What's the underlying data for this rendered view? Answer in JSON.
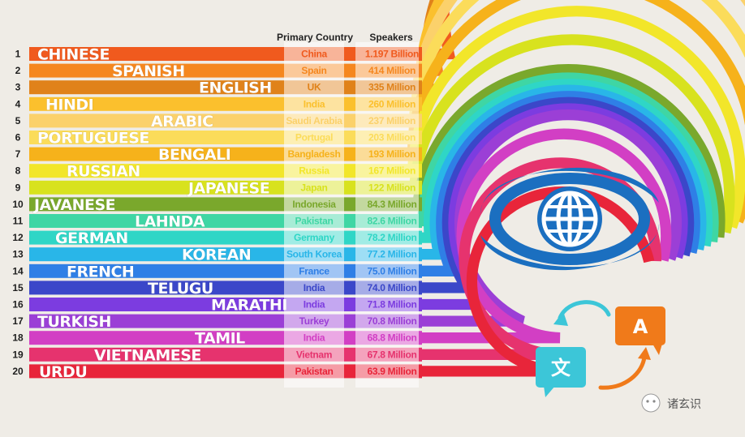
{
  "chart_data": {
    "type": "table",
    "columns": [
      "Primary Country",
      "Speakers"
    ],
    "rows": [
      {
        "rank": "1",
        "language": "CHINESE",
        "country": "China",
        "speakers_label": "1.197 Billion",
        "speakers_millions": 1197,
        "color": "#f05a1e"
      },
      {
        "rank": "2",
        "language": "SPANISH",
        "country": "Spain",
        "speakers_label": "414 Million",
        "speakers_millions": 414,
        "color": "#f5871f"
      },
      {
        "rank": "3",
        "language": "ENGLISH",
        "country": "UK",
        "speakers_label": "335 Million",
        "speakers_millions": 335,
        "color": "#e0821a"
      },
      {
        "rank": "4",
        "language": "HINDI",
        "country": "India",
        "speakers_label": "260 Million",
        "speakers_millions": 260,
        "color": "#fbc02d"
      },
      {
        "rank": "5",
        "language": "ARABIC",
        "country": "Saudi Arabia",
        "speakers_label": "237 Million",
        "speakers_millions": 237,
        "color": "#fbd16b"
      },
      {
        "rank": "6",
        "language": "PORTUGUESE",
        "country": "Portugal",
        "speakers_label": "203 Million",
        "speakers_millions": 203,
        "color": "#fbdc5a"
      },
      {
        "rank": "7",
        "language": "BENGALI",
        "country": "Bangladesh",
        "speakers_label": "193 Million",
        "speakers_millions": 193,
        "color": "#f6b21b"
      },
      {
        "rank": "8",
        "language": "RUSSIAN",
        "country": "Russia",
        "speakers_label": "167 Million",
        "speakers_millions": 167,
        "color": "#f2e62a"
      },
      {
        "rank": "9",
        "language": "JAPANESE",
        "country": "Japan",
        "speakers_label": "122 Million",
        "speakers_millions": 122,
        "color": "#d8e21e"
      },
      {
        "rank": "10",
        "language": "JAVANESE",
        "country": "Indonesia",
        "speakers_label": "84.3 Million",
        "speakers_millions": 84.3,
        "color": "#7aa82c"
      },
      {
        "rank": "11",
        "language": "LAHNDA",
        "country": "Pakistan",
        "speakers_label": "82.6 Million",
        "speakers_millions": 82.6,
        "color": "#3fd6a4"
      },
      {
        "rank": "12",
        "language": "GERMAN",
        "country": "Germany",
        "speakers_label": "78.2 Million",
        "speakers_millions": 78.2,
        "color": "#2fd6c6"
      },
      {
        "rank": "13",
        "language": "KOREAN",
        "country": "South Korea",
        "speakers_label": "77.2 Million",
        "speakers_millions": 77.2,
        "color": "#29b6e8"
      },
      {
        "rank": "14",
        "language": "FRENCH",
        "country": "France",
        "speakers_label": "75.0 Million",
        "speakers_millions": 75.0,
        "color": "#2f7fe6"
      },
      {
        "rank": "15",
        "language": "TELUGU",
        "country": "India",
        "speakers_label": "74.0 Million",
        "speakers_millions": 74.0,
        "color": "#3b47c9"
      },
      {
        "rank": "16",
        "language": "MARATHI",
        "country": "India",
        "speakers_label": "71.8 Million",
        "speakers_millions": 71.8,
        "color": "#7c3ce0"
      },
      {
        "rank": "17",
        "language": "TURKISH",
        "country": "Turkey",
        "speakers_label": "70.8 Million",
        "speakers_millions": 70.8,
        "color": "#9b3fd6"
      },
      {
        "rank": "18",
        "language": "TAMIL",
        "country": "India",
        "speakers_label": "68.8 Million",
        "speakers_millions": 68.8,
        "color": "#d23fc4"
      },
      {
        "rank": "19",
        "language": "VIETNAMESE",
        "country": "Vietnam",
        "speakers_label": "67.8 Million",
        "speakers_millions": 67.8,
        "color": "#e6336e"
      },
      {
        "rank": "20",
        "language": "URDU",
        "country": "Pakistan",
        "speakers_label": "63.9 Million",
        "speakers_millions": 63.9,
        "color": "#e8253a"
      }
    ]
  },
  "header": {
    "country_col": "Primary Country",
    "speakers_col": "Speakers"
  },
  "icons": {
    "globe": "globe-logo-icon",
    "translate_chinese": "文",
    "translate_latin": "A"
  },
  "watermark": {
    "text": "诸玄识"
  },
  "colors": {
    "background": "#efece6",
    "logo_blue": "#1b6fc0",
    "bubble_teal": "#3cc6d8",
    "bubble_orange": "#f07a1a"
  }
}
